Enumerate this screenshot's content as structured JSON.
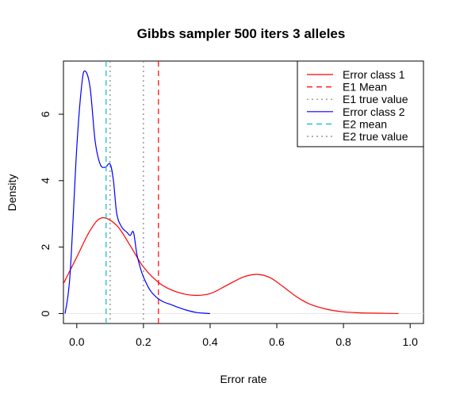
{
  "chart_data": {
    "type": "line",
    "title": "Gibbs sampler 500 iters 3 alleles",
    "xlabel": "Error rate",
    "ylabel": "Density",
    "xlim": [
      -0.04,
      1.04
    ],
    "ylim": [
      -0.3,
      7.6
    ],
    "xticks": [
      0.0,
      0.2,
      0.4,
      0.6,
      0.8,
      1.0
    ],
    "xtick_labels": [
      "0.0",
      "0.2",
      "0.4",
      "0.6",
      "0.8",
      "1.0"
    ],
    "yticks": [
      0,
      2,
      4,
      6
    ],
    "ytick_labels": [
      "0",
      "2",
      "4",
      "6"
    ],
    "legend_position": "top-right",
    "series": [
      {
        "name": "Error class 1",
        "color": "#ff0000",
        "style": "solid",
        "x": [
          -0.04,
          0.0,
          0.04,
          0.075,
          0.12,
          0.16,
          0.2,
          0.25,
          0.3,
          0.35,
          0.4,
          0.45,
          0.5,
          0.54,
          0.58,
          0.62,
          0.66,
          0.7,
          0.75,
          0.8,
          0.85,
          0.9,
          0.965
        ],
        "y": [
          0.9,
          1.7,
          2.5,
          2.88,
          2.65,
          2.05,
          1.4,
          0.9,
          0.65,
          0.55,
          0.6,
          0.85,
          1.1,
          1.18,
          1.08,
          0.8,
          0.5,
          0.28,
          0.13,
          0.05,
          0.02,
          0.01,
          0.0
        ]
      },
      {
        "name": "E1 Mean",
        "color": "#ff0000",
        "style": "dashed",
        "x": 0.245
      },
      {
        "name": "E1 true value",
        "color": "#808080",
        "style": "dotted",
        "x": 0.2
      },
      {
        "name": "Error class 2",
        "color": "#0000ff",
        "style": "solid",
        "x": [
          -0.035,
          -0.02,
          0.0,
          0.015,
          0.025,
          0.04,
          0.055,
          0.07,
          0.085,
          0.1,
          0.11,
          0.12,
          0.135,
          0.15,
          0.16,
          0.17,
          0.18,
          0.19,
          0.2,
          0.22,
          0.24,
          0.26,
          0.28,
          0.3,
          0.33,
          0.36,
          0.4
        ],
        "y": [
          0.0,
          1.2,
          5.0,
          6.9,
          7.3,
          6.8,
          5.2,
          4.5,
          4.4,
          4.5,
          4.0,
          3.0,
          2.6,
          2.45,
          2.35,
          2.45,
          1.8,
          1.4,
          1.1,
          0.7,
          0.48,
          0.35,
          0.28,
          0.2,
          0.1,
          0.03,
          0.0
        ]
      },
      {
        "name": "E2 mean",
        "color": "#00c0c0",
        "style": "dashed",
        "x": 0.088
      },
      {
        "name": "E2 true value",
        "color": "#808080",
        "style": "dotted",
        "x": 0.1
      }
    ]
  }
}
